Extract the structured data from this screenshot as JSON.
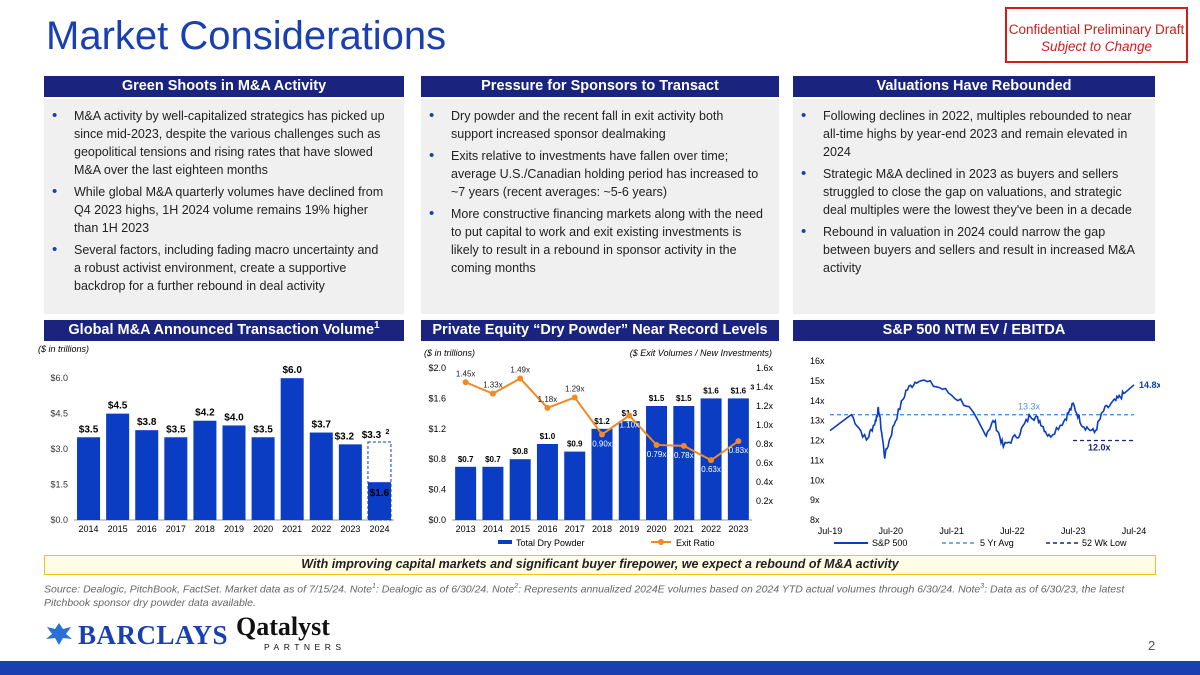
{
  "title": "Market Considerations",
  "confidential": {
    "line1": "Confidential Preliminary Draft",
    "line2": "Subject to Change"
  },
  "sections": {
    "s1": {
      "header": "Green Shoots in M&A Activity",
      "bullets": [
        "M&A activity by well-capitalized strategics has picked up since mid-2023, despite the various challenges such as geopolitical tensions and rising rates that have slowed M&A over the last eighteen months",
        "While global M&A quarterly volumes have declined from Q4 2023 highs, 1H 2024 volume remains 19% higher than 1H 2023",
        "Several factors, including fading macro uncertainty and a robust activist environment, create a supportive backdrop for a further rebound in deal activity"
      ]
    },
    "s2": {
      "header": "Pressure for Sponsors to Transact",
      "bullets": [
        "Dry powder and the recent fall in exit activity both support increased sponsor dealmaking",
        "Exits relative to investments have fallen over time; average U.S./Canadian holding period has increased to ~7 years (recent averages: ~5-6 years)",
        "More constructive financing markets along with the need to put capital to work and exit existing investments is likely to result in a rebound in sponsor activity in the coming months"
      ]
    },
    "s3": {
      "header": "Valuations Have Rebounded",
      "bullets": [
        "Following declines in 2022, multiples rebounded to near all-time highs by year-end 2023 and remain elevated in 2024",
        "Strategic M&A declined in 2023 as buyers and sellers struggled to close the gap on valuations, and strategic deal multiples were the lowest they've been in a decade",
        "Rebound in valuation in 2024 could narrow the gap between buyers and sellers and result in increased M&A activity"
      ]
    }
  },
  "chart_headers": {
    "c1": "Global M&A Announced Transaction Volume",
    "c1_sup": "1",
    "c2": "Private Equity “Dry Powder” Near Record Levels",
    "c3": "S&P 500 NTM EV / EBITDA"
  },
  "chart_data": [
    {
      "type": "bar",
      "note": "($ in trillions)",
      "categories": [
        "2014",
        "2015",
        "2016",
        "2017",
        "2018",
        "2019",
        "2020",
        "2021",
        "2022",
        "2023",
        "2024"
      ],
      "values": [
        3.5,
        4.5,
        3.8,
        3.5,
        4.2,
        4.0,
        3.5,
        6.0,
        3.7,
        3.2,
        1.6
      ],
      "labels": [
        "$3.5",
        "$4.5",
        "$3.8",
        "$3.5",
        "$4.2",
        "$4.0",
        "$3.5",
        "$6.0",
        "$3.7",
        "$3.2",
        "$1.6"
      ],
      "projected_2024": {
        "value": 3.3,
        "label": "$3.3",
        "sup": "2"
      },
      "ylim": [
        0,
        6.6
      ],
      "ytick_labels": [
        "$0.0",
        "$1.5",
        "$3.0",
        "$4.5",
        "$6.0"
      ],
      "yticks": [
        0,
        1.5,
        3.0,
        4.5,
        6.0
      ],
      "color": "#0a3cc4"
    },
    {
      "type": "bar+line",
      "note_left": "($ in trillions)",
      "note_right": "($ Exit Volumes / New Investments)",
      "categories": [
        "2013",
        "2014",
        "2015",
        "2016",
        "2017",
        "2018",
        "2019",
        "2020",
        "2021",
        "2022",
        "2023"
      ],
      "series": [
        {
          "name": "Total Dry Powder",
          "axis": "left",
          "values": [
            0.7,
            0.7,
            0.8,
            1.0,
            0.9,
            1.2,
            1.3,
            1.5,
            1.5,
            1.6,
            1.6
          ],
          "labels": [
            "$0.7",
            "$0.7",
            "$0.8",
            "$1.0",
            "$0.9",
            "$1.2",
            "$1.3",
            "$1.5",
            "$1.5",
            "$1.6",
            "$1.6"
          ],
          "color": "#0a3cc4"
        },
        {
          "name": "Exit Ratio",
          "axis": "right",
          "values": [
            1.45,
            1.33,
            1.49,
            1.18,
            1.29,
            0.9,
            1.1,
            0.79,
            0.78,
            0.63,
            0.83
          ],
          "labels": [
            "1.45x",
            "1.33x",
            "1.49x",
            "1.18x",
            "1.29x",
            "0.90x",
            "1.10x",
            "0.79x",
            "0.78x",
            "0.63x",
            "0.83x"
          ],
          "color": "#f08a24"
        }
      ],
      "last_label_sup": "3",
      "ylim_left": [
        0,
        2.0
      ],
      "ytick_left_labels": [
        "$0.0",
        "$0.4",
        "$0.8",
        "$1.2",
        "$1.6",
        "$2.0"
      ],
      "ylim_right": [
        0,
        1.6
      ],
      "ytick_right_labels": [
        "0.2x",
        "0.4x",
        "0.6x",
        "0.8x",
        "1.0x",
        "1.2x",
        "1.4x",
        "1.6x"
      ]
    },
    {
      "type": "line",
      "x_labels": [
        "Jul-19",
        "Jul-20",
        "Jul-21",
        "Jul-22",
        "Jul-23",
        "Jul-24"
      ],
      "ylim": [
        8,
        16
      ],
      "ytick_labels": [
        "8x",
        "9x",
        "10x",
        "11x",
        "12x",
        "13x",
        "14x",
        "15x",
        "16x"
      ],
      "series": [
        {
          "name": "S&P 500",
          "color": "#0a3cc4",
          "key_points": [
            [
              0,
              12.5
            ],
            [
              0.07,
              13.3
            ],
            [
              0.12,
              12.0
            ],
            [
              0.15,
              13.0
            ],
            [
              0.16,
              13.6
            ],
            [
              0.18,
              11.2
            ],
            [
              0.21,
              12.8
            ],
            [
              0.25,
              14.5
            ],
            [
              0.29,
              15.1
            ],
            [
              0.37,
              14.6
            ],
            [
              0.45,
              13.8
            ],
            [
              0.51,
              12.3
            ],
            [
              0.54,
              13.0
            ],
            [
              0.57,
              11.7
            ],
            [
              0.62,
              12.3
            ],
            [
              0.66,
              13.3
            ],
            [
              0.69,
              13.0
            ],
            [
              0.72,
              12.2
            ],
            [
              0.77,
              13.0
            ],
            [
              0.8,
              13.8
            ],
            [
              0.83,
              12.8
            ],
            [
              0.87,
              12.4
            ],
            [
              0.9,
              13.5
            ],
            [
              0.94,
              14.0
            ],
            [
              0.97,
              14.4
            ],
            [
              1.0,
              14.8
            ]
          ],
          "end_label": "14.8x"
        },
        {
          "name": "5 Yr Avg",
          "value": 13.3,
          "label": "13.3x",
          "color": "#4a90e2"
        },
        {
          "name": "52 Wk Low",
          "value": 12.0,
          "label": "12.0x",
          "color": "#1a237e"
        }
      ]
    }
  ],
  "banner": "With improving capital markets and significant buyer firepower, we expect a rebound of M&A activity",
  "source": {
    "p1": "Source: Dealogic, PitchBook, FactSet. Market data as of 7/15/24. Note",
    "s1": "1",
    "p2": ": Dealogic as of 6/30/24. Note",
    "s2": "2",
    "p3": ": Represents annualized 2024E volumes based on 2024 YTD actual volumes through 6/30/24. Note",
    "s3": "3",
    "p4": ": Data as of 6/30/23, the latest Pitchbook sponsor dry powder data available."
  },
  "logos": {
    "barclays": "BARCLAYS",
    "qatalyst_main": "Qatalyst",
    "qatalyst_sub": "PARTNERS"
  },
  "page_number": "2"
}
